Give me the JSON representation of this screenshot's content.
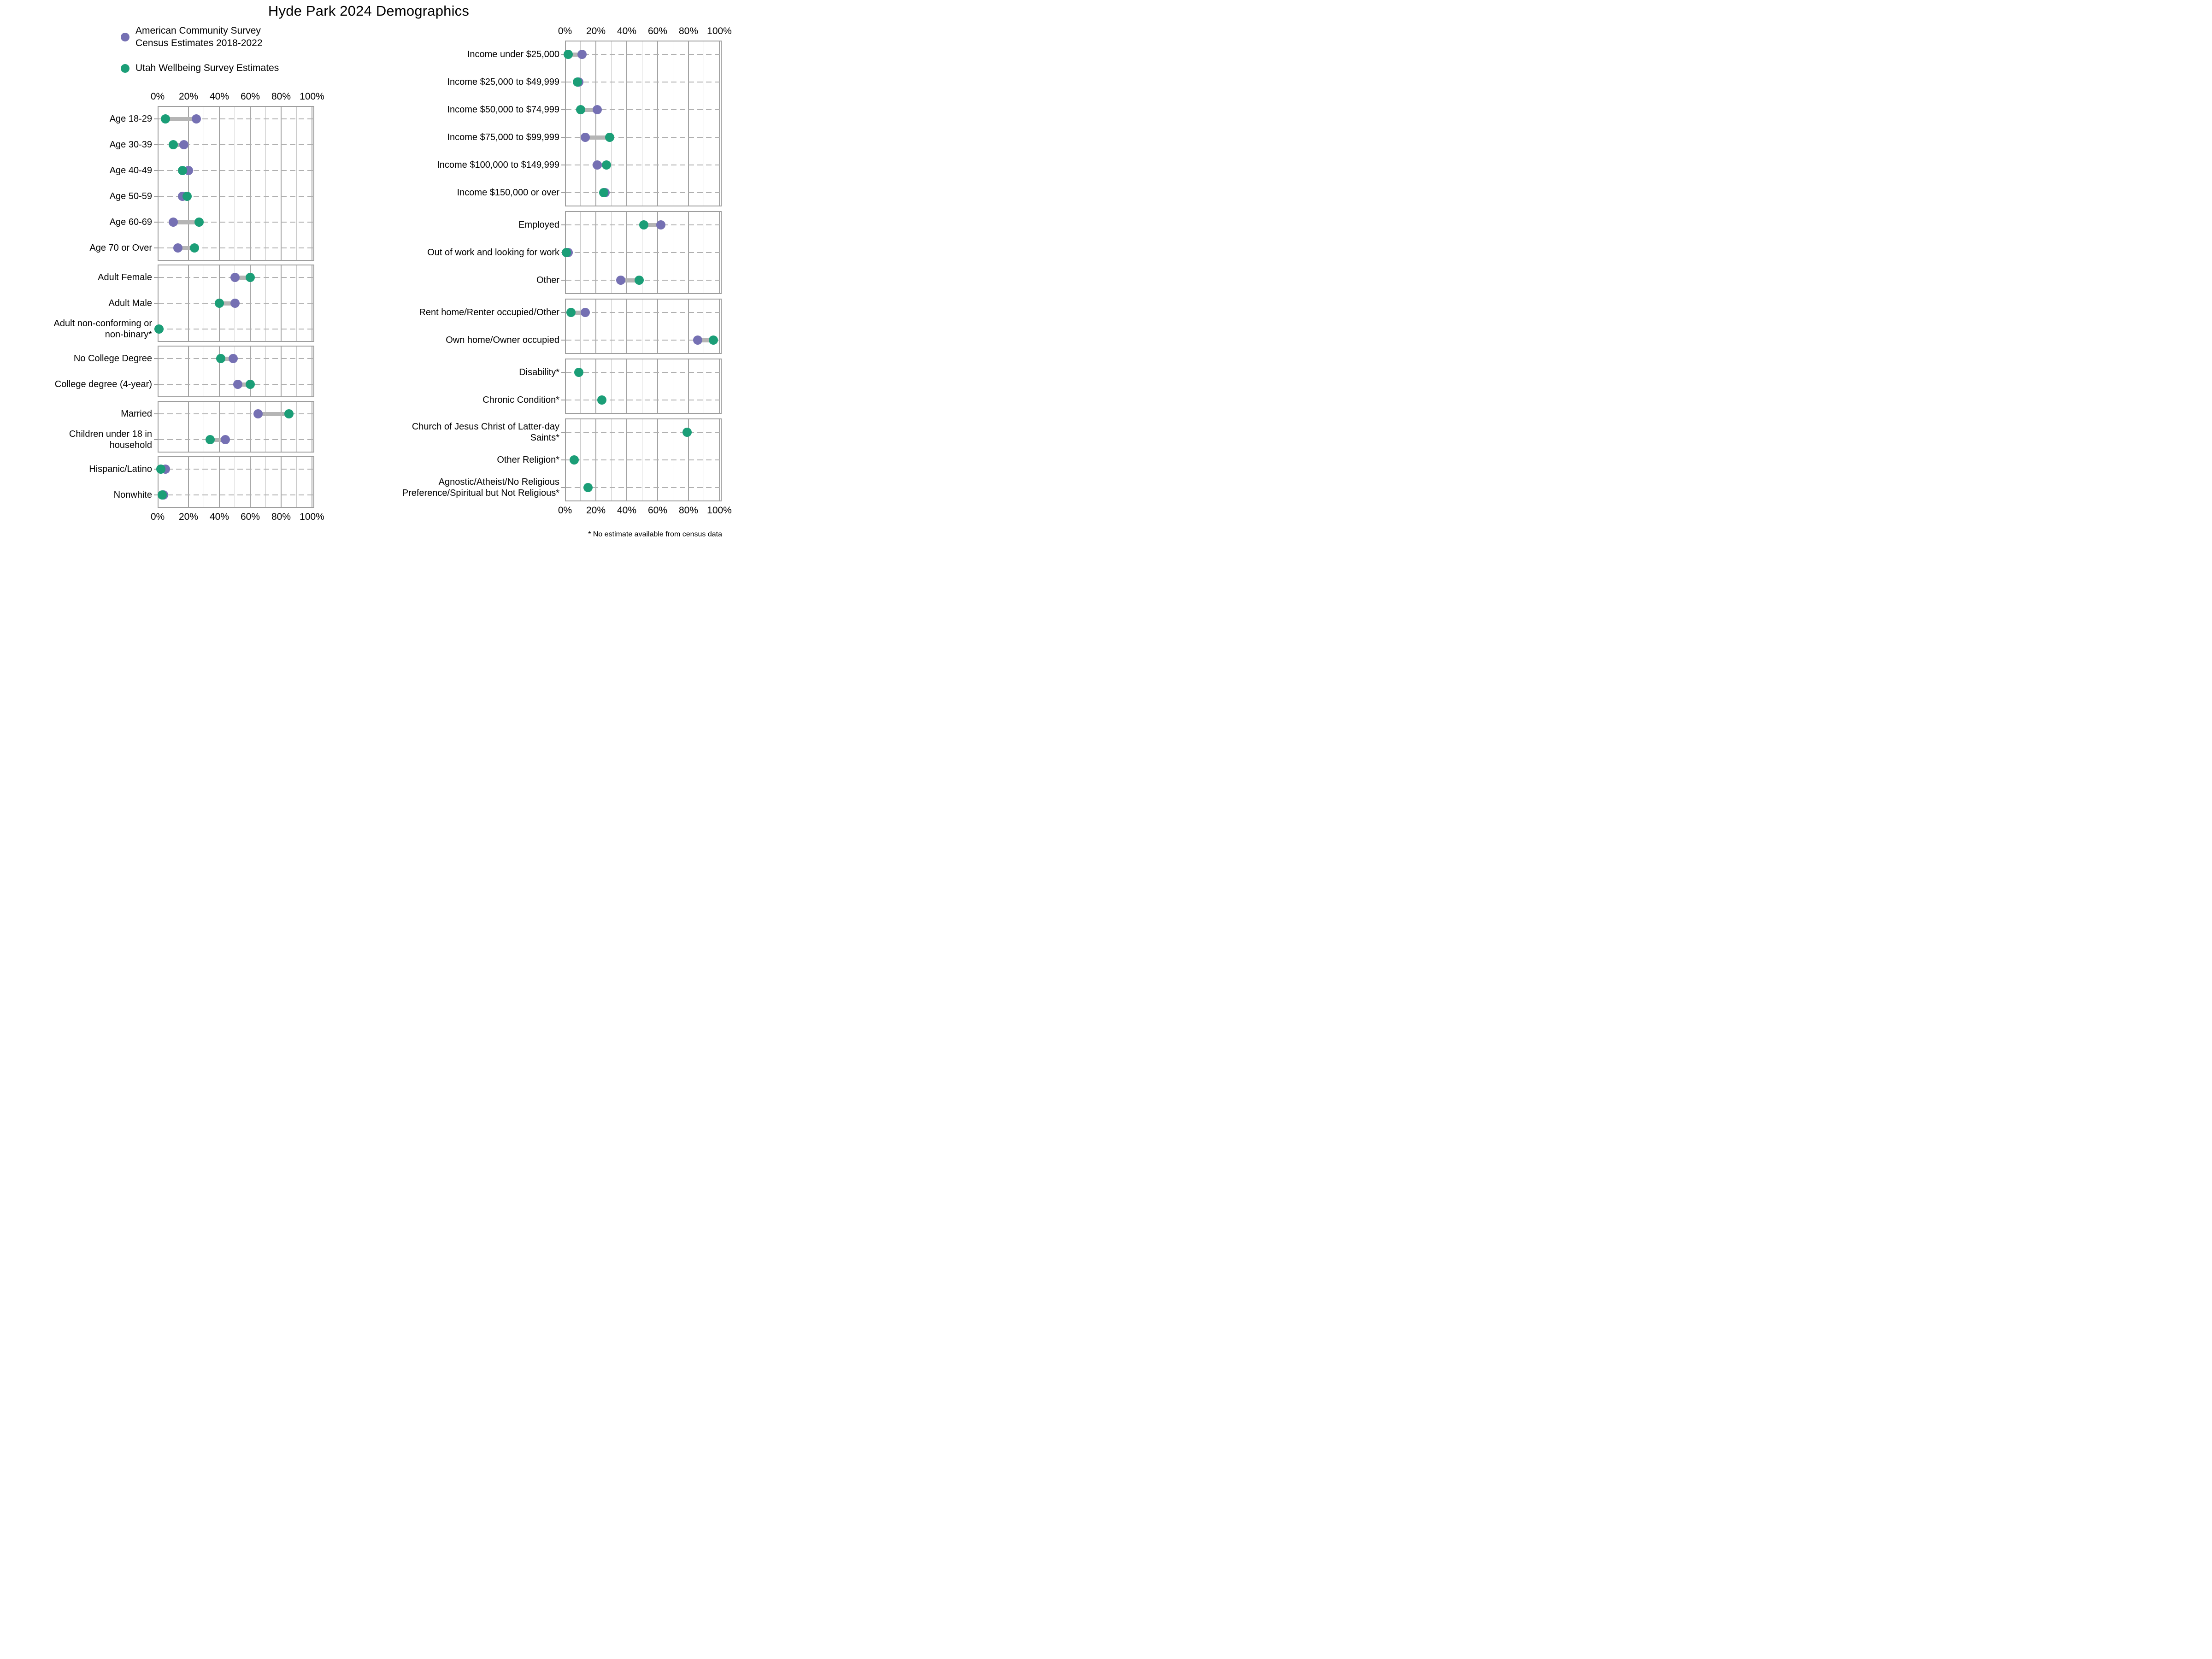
{
  "title": "Hyde Park 2024 Demographics",
  "legend": {
    "items": [
      {
        "series": "acs",
        "label": "American Community Survey\nCensus Estimates 2018-2022",
        "color": "#7570B3"
      },
      {
        "series": "uws",
        "label": "Utah Wellbeing Survey Estimates",
        "color": "#1B9E77"
      }
    ]
  },
  "footnote": "* No estimate available from census data",
  "colors": {
    "acs": "#7570B3",
    "uws": "#1B9E77",
    "connector": "#b5b5b5",
    "grid_major": "#a3a3a3",
    "grid_minor": "#c6c6c6",
    "frame": "#9e9e9e",
    "dash": "#b0b0b0",
    "text": "#000000"
  },
  "axis": {
    "min": 0,
    "max": 100,
    "tick_values": [
      0,
      20,
      40,
      60,
      80,
      100
    ],
    "tick_labels": [
      "0%",
      "20%",
      "40%",
      "60%",
      "80%",
      "100%"
    ],
    "minor_step": 10,
    "grid": true
  },
  "chart_data": {
    "type": "dumbbell",
    "title": "Hyde Park 2024 Demographics",
    "unit": "percent",
    "series": [
      {
        "key": "acs",
        "name": "American Community Survey Census Estimates 2018-2022",
        "color": "#7570B3"
      },
      {
        "key": "uws",
        "name": "Utah Wellbeing Survey Estimates",
        "color": "#1B9E77"
      }
    ],
    "columns": [
      {
        "id": "left",
        "panels": [
          {
            "rows": [
              {
                "label": "Age 18-29",
                "acs": 25,
                "uws": 5
              },
              {
                "label": "Age 30-39",
                "acs": 17,
                "uws": 10
              },
              {
                "label": "Age 40-49",
                "acs": 20,
                "uws": 16
              },
              {
                "label": "Age 50-59",
                "acs": 16,
                "uws": 19
              },
              {
                "label": "Age 60-69",
                "acs": 10,
                "uws": 27
              },
              {
                "label": "Age 70 or Over",
                "acs": 13,
                "uws": 24
              }
            ]
          },
          {
            "rows": [
              {
                "label": "Adult Female",
                "acs": 50,
                "uws": 60
              },
              {
                "label": "Adult Male",
                "acs": 50,
                "uws": 40
              },
              {
                "label": "Adult non-conforming or non-binary*",
                "acs": null,
                "uws": 1
              }
            ]
          },
          {
            "rows": [
              {
                "label": "No College Degree",
                "acs": 49,
                "uws": 41
              },
              {
                "label": "College degree (4-year)",
                "acs": 52,
                "uws": 60
              }
            ]
          },
          {
            "rows": [
              {
                "label": "Married",
                "acs": 65,
                "uws": 85
              },
              {
                "label": "Children under 18 in household",
                "acs": 44,
                "uws": 34
              }
            ]
          },
          {
            "rows": [
              {
                "label": "Hispanic/Latino",
                "acs": 5,
                "uws": 2
              },
              {
                "label": "Nonwhite",
                "acs": 4,
                "uws": 3
              }
            ]
          }
        ]
      },
      {
        "id": "right",
        "panels": [
          {
            "rows": [
              {
                "label": "Income under $25,000",
                "acs": 11,
                "uws": 2
              },
              {
                "label": "Income $25,000 to $49,999",
                "acs": 9,
                "uws": 8
              },
              {
                "label": "Income $50,000 to $74,999",
                "acs": 21,
                "uws": 10
              },
              {
                "label": "Income $75,000 to $99,999",
                "acs": 13,
                "uws": 29
              },
              {
                "label": "Income $100,000 to $149,999",
                "acs": 21,
                "uws": 27
              },
              {
                "label": "Income $150,000 or over",
                "acs": 26,
                "uws": 25
              }
            ]
          },
          {
            "rows": [
              {
                "label": "Employed",
                "acs": 62,
                "uws": 51
              },
              {
                "label": "Out of work and looking for work",
                "acs": 2,
                "uws": 1
              },
              {
                "label": "Other",
                "acs": 36,
                "uws": 48
              }
            ]
          },
          {
            "rows": [
              {
                "label": "Rent home/Renter occupied/Other",
                "acs": 13,
                "uws": 4
              },
              {
                "label": "Own home/Owner occupied",
                "acs": 86,
                "uws": 96
              }
            ]
          },
          {
            "rows": [
              {
                "label": "Disability*",
                "acs": null,
                "uws": 9
              },
              {
                "label": "Chronic Condition*",
                "acs": null,
                "uws": 24
              }
            ]
          },
          {
            "rows": [
              {
                "label": "Church of Jesus Christ of Latter-day Saints*",
                "acs": null,
                "uws": 79
              },
              {
                "label": "Other Religion*",
                "acs": null,
                "uws": 6
              },
              {
                "label": "Agnostic/Atheist/No Religious Preference/Spiritual but Not Religious*",
                "acs": null,
                "uws": 15
              }
            ]
          }
        ]
      }
    ]
  }
}
